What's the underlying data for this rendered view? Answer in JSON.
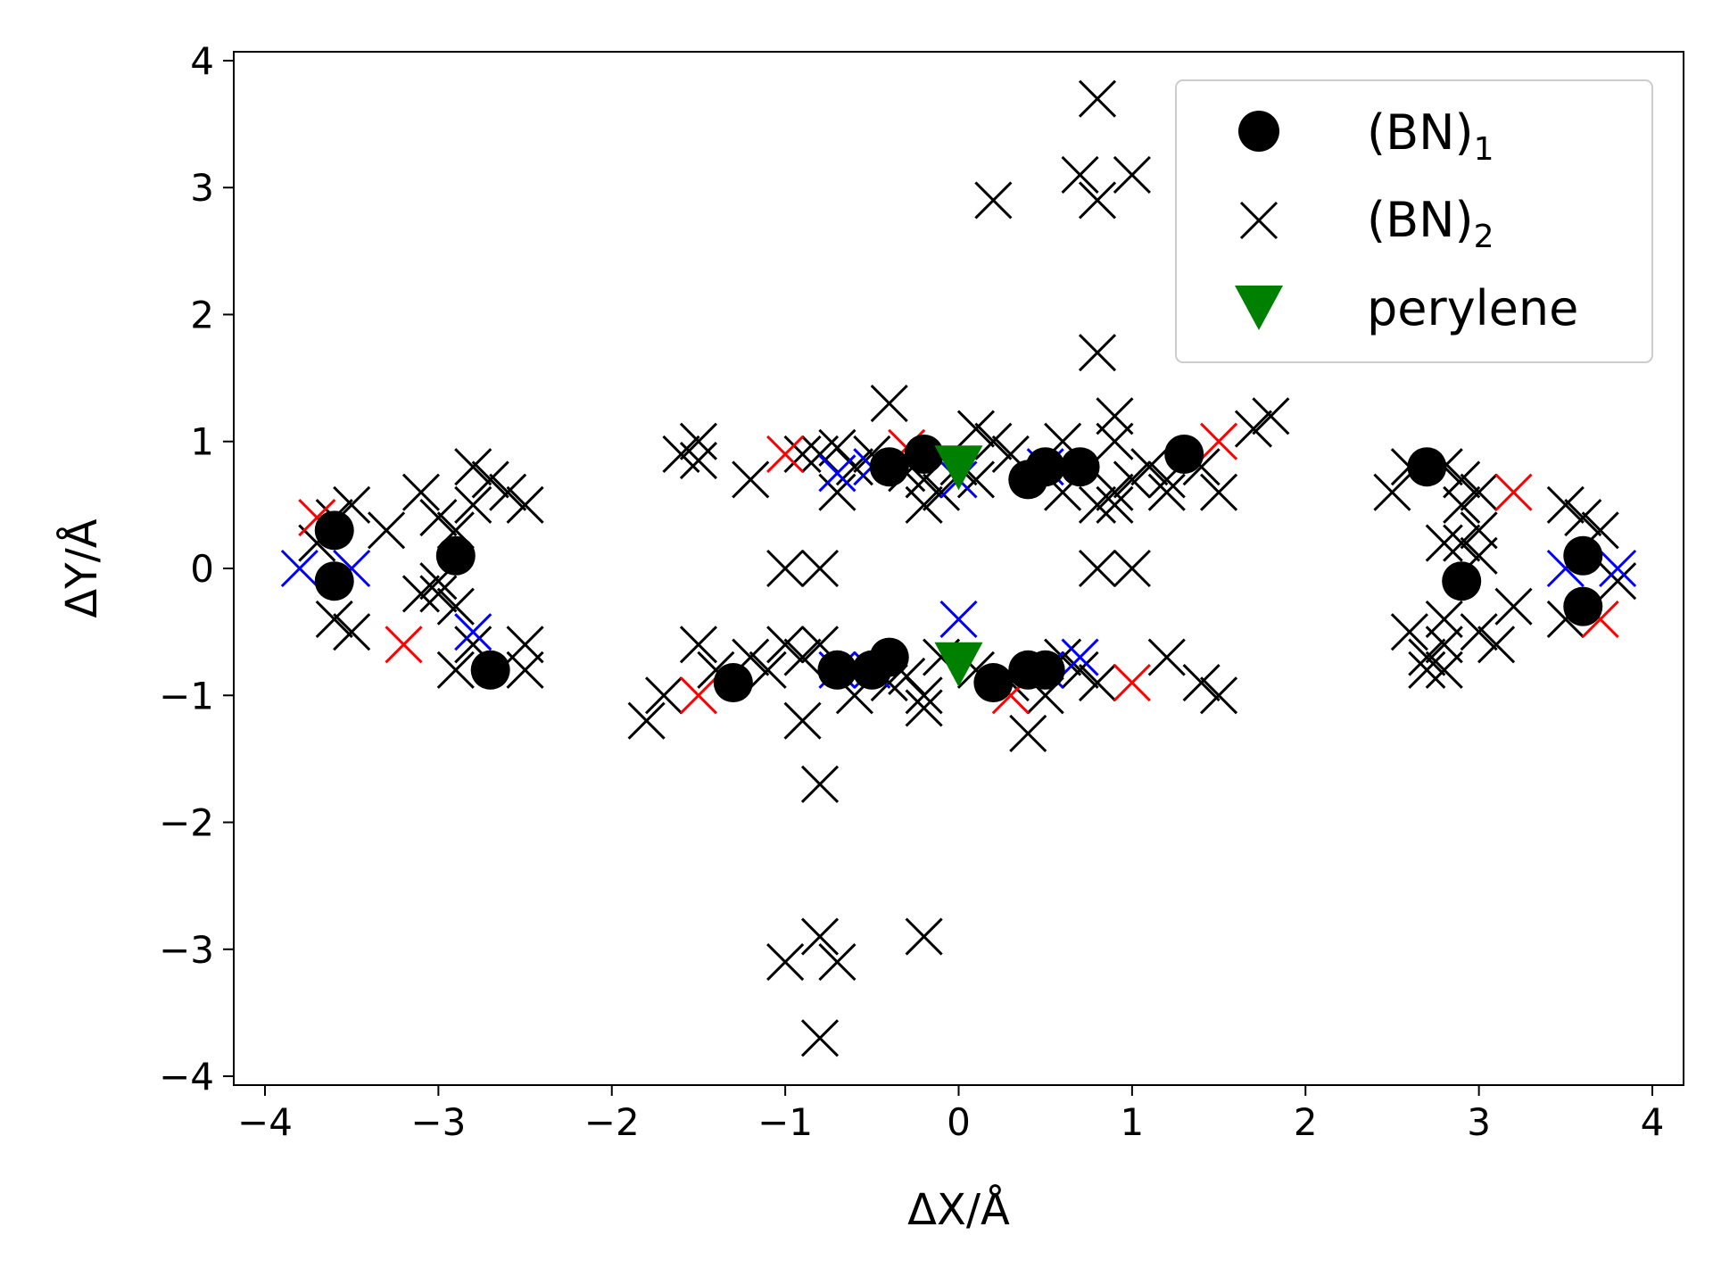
{
  "chart_data": {
    "type": "scatter",
    "xlabel": "ΔX/Å",
    "ylabel": "ΔY/Å",
    "xlim": [
      -4.18,
      4.18
    ],
    "ylim": [
      -4.07,
      4.07
    ],
    "xticks": [
      -4,
      -3,
      -2,
      -1,
      0,
      1,
      2,
      3,
      4
    ],
    "yticks": [
      -4,
      -3,
      -2,
      -1,
      0,
      1,
      2,
      3,
      4
    ],
    "grid": false,
    "legend_position": "top-right",
    "colors": {
      "black": "#000000",
      "red": "#ff0000",
      "blue": "#0000ff",
      "green": "#008000"
    },
    "series": [
      {
        "name": "(BN)",
        "name_subscript": "1",
        "marker": "circle",
        "color": "#000000",
        "points": [
          [
            -3.6,
            0.3
          ],
          [
            -3.6,
            -0.1
          ],
          [
            -2.9,
            0.1
          ],
          [
            -2.7,
            -0.8
          ],
          [
            -1.3,
            -0.9
          ],
          [
            -0.7,
            -0.8
          ],
          [
            -0.5,
            -0.8
          ],
          [
            -0.4,
            -0.7
          ],
          [
            0.2,
            -0.9
          ],
          [
            0.4,
            -0.8
          ],
          [
            0.5,
            -0.8
          ],
          [
            -0.4,
            0.8
          ],
          [
            -0.2,
            0.9
          ],
          [
            0.4,
            0.7
          ],
          [
            0.5,
            0.8
          ],
          [
            0.7,
            0.8
          ],
          [
            1.3,
            0.9
          ],
          [
            2.7,
            0.8
          ],
          [
            2.9,
            -0.1
          ],
          [
            3.6,
            0.1
          ],
          [
            3.6,
            -0.3
          ]
        ]
      },
      {
        "name": "(BN)",
        "name_subscript": "2",
        "marker": "x",
        "color": "#000000",
        "points": [
          [
            0.8,
            3.7
          ],
          [
            0.7,
            3.1
          ],
          [
            1.0,
            3.1
          ],
          [
            0.2,
            2.9
          ],
          [
            0.8,
            2.9
          ],
          [
            0.8,
            1.7
          ],
          [
            0.9,
            1.2
          ],
          [
            -0.4,
            1.3
          ],
          [
            1.8,
            1.2
          ],
          [
            1.7,
            1.1
          ],
          [
            0.1,
            1.1
          ],
          [
            0.2,
            1.0
          ],
          [
            0.6,
            1.0
          ],
          [
            0.9,
            1.0
          ],
          [
            -1.5,
            1.0
          ],
          [
            -1.6,
            0.9
          ],
          [
            -1.5,
            0.85
          ],
          [
            -1.2,
            0.7
          ],
          [
            -0.9,
            0.9
          ],
          [
            -0.8,
            0.9
          ],
          [
            -0.7,
            0.95
          ],
          [
            -0.6,
            0.8
          ],
          [
            -0.5,
            0.9
          ],
          [
            -0.3,
            0.75
          ],
          [
            -0.2,
            0.7
          ],
          [
            -0.1,
            0.6
          ],
          [
            -0.7,
            0.6
          ],
          [
            0.0,
            0.8
          ],
          [
            0.1,
            0.7
          ],
          [
            0.3,
            0.9
          ],
          [
            0.6,
            0.6
          ],
          [
            0.8,
            0.5
          ],
          [
            0.9,
            0.6
          ],
          [
            1.0,
            0.7
          ],
          [
            1.1,
            0.8
          ],
          [
            1.2,
            0.7
          ],
          [
            1.4,
            0.8
          ],
          [
            1.5,
            0.6
          ],
          [
            1.2,
            0.6
          ],
          [
            -0.2,
            0.5
          ],
          [
            0.9,
            0.5
          ],
          [
            0.8,
            0.0
          ],
          [
            1.0,
            0.0
          ],
          [
            -1.0,
            0.0
          ],
          [
            -0.8,
            0.0
          ],
          [
            -1.0,
            -0.6
          ],
          [
            -0.9,
            -0.7
          ],
          [
            -0.8,
            -0.6
          ],
          [
            -1.2,
            -0.7
          ],
          [
            -1.1,
            -0.8
          ],
          [
            -0.6,
            -1.0
          ],
          [
            -0.4,
            -0.9
          ],
          [
            -0.3,
            -0.85
          ],
          [
            -0.2,
            -1.0
          ],
          [
            -0.1,
            -0.7
          ],
          [
            0.1,
            -0.8
          ],
          [
            0.3,
            -0.9
          ],
          [
            0.5,
            -1.0
          ],
          [
            0.6,
            -0.7
          ],
          [
            0.7,
            -0.8
          ],
          [
            0.8,
            -0.9
          ],
          [
            0.4,
            -1.3
          ],
          [
            -0.2,
            -1.1
          ],
          [
            1.2,
            -0.7
          ],
          [
            1.4,
            -0.9
          ],
          [
            1.5,
            -1.0
          ],
          [
            -1.5,
            -0.6
          ],
          [
            -1.4,
            -0.8
          ],
          [
            -1.7,
            -1.0
          ],
          [
            -1.8,
            -1.2
          ],
          [
            -0.9,
            -1.2
          ],
          [
            -0.8,
            -1.7
          ],
          [
            -0.2,
            -2.9
          ],
          [
            -0.8,
            -2.9
          ],
          [
            -1.0,
            -3.1
          ],
          [
            -0.7,
            -3.1
          ],
          [
            -0.8,
            -3.7
          ],
          [
            -3.5,
            0.5
          ],
          [
            -3.6,
            0.4
          ],
          [
            -3.7,
            0.2
          ],
          [
            -3.6,
            -0.4
          ],
          [
            -3.5,
            -0.5
          ],
          [
            -3.3,
            0.3
          ],
          [
            -3.1,
            0.6
          ],
          [
            -3.0,
            0.4
          ],
          [
            -2.9,
            0.3
          ],
          [
            -2.8,
            0.8
          ],
          [
            -2.7,
            0.7
          ],
          [
            -2.6,
            0.6
          ],
          [
            -2.5,
            0.5
          ],
          [
            -2.8,
            0.5
          ],
          [
            -3.0,
            -0.1
          ],
          [
            -3.0,
            -0.2
          ],
          [
            -2.9,
            -0.3
          ],
          [
            -3.1,
            -0.2
          ],
          [
            -2.8,
            -0.6
          ],
          [
            -2.9,
            -0.8
          ],
          [
            -2.5,
            -0.6
          ],
          [
            -2.5,
            -0.8
          ],
          [
            2.6,
            0.8
          ],
          [
            2.5,
            0.6
          ],
          [
            2.8,
            0.8
          ],
          [
            2.9,
            0.7
          ],
          [
            3.0,
            0.6
          ],
          [
            2.9,
            0.5
          ],
          [
            3.0,
            0.3
          ],
          [
            2.9,
            0.2
          ],
          [
            2.8,
            0.2
          ],
          [
            3.0,
            0.1
          ],
          [
            2.8,
            -0.4
          ],
          [
            2.8,
            -0.6
          ],
          [
            2.6,
            -0.5
          ],
          [
            2.7,
            -0.7
          ],
          [
            2.8,
            -0.8
          ],
          [
            2.7,
            -0.8
          ],
          [
            3.0,
            -0.5
          ],
          [
            3.1,
            -0.6
          ],
          [
            3.2,
            -0.3
          ],
          [
            3.5,
            0.5
          ],
          [
            3.6,
            0.4
          ],
          [
            3.7,
            0.3
          ],
          [
            3.5,
            -0.4
          ],
          [
            3.8,
            -0.1
          ]
        ]
      }
    ],
    "uncaptioned_markers": [
      {
        "marker": "x",
        "color": "#ff0000",
        "points": [
          [
            -3.7,
            0.4
          ],
          [
            -3.2,
            -0.6
          ],
          [
            -1.0,
            0.9
          ],
          [
            -0.3,
            0.95
          ],
          [
            1.5,
            1.0
          ],
          [
            -1.5,
            -1.0
          ],
          [
            0.3,
            -1.0
          ],
          [
            1.0,
            -0.9
          ],
          [
            3.2,
            0.6
          ],
          [
            3.7,
            -0.4
          ]
        ]
      },
      {
        "marker": "x",
        "color": "#0000ff",
        "points": [
          [
            -3.8,
            0.0
          ],
          [
            -3.5,
            0.0
          ],
          [
            -2.8,
            -0.5
          ],
          [
            -0.7,
            0.75
          ],
          [
            -0.5,
            0.8
          ],
          [
            0.0,
            0.7
          ],
          [
            0.5,
            0.8
          ],
          [
            -0.7,
            -0.8
          ],
          [
            -0.5,
            -0.8
          ],
          [
            0.0,
            -0.4
          ],
          [
            0.5,
            -0.8
          ],
          [
            0.7,
            -0.7
          ],
          [
            3.5,
            0.0
          ],
          [
            3.8,
            0.0
          ]
        ]
      }
    ],
    "perylene": {
      "name": "perylene",
      "marker": "triangle-down",
      "color": "#008000",
      "points": [
        [
          0.0,
          0.8
        ],
        [
          0.0,
          -0.75
        ]
      ]
    }
  }
}
